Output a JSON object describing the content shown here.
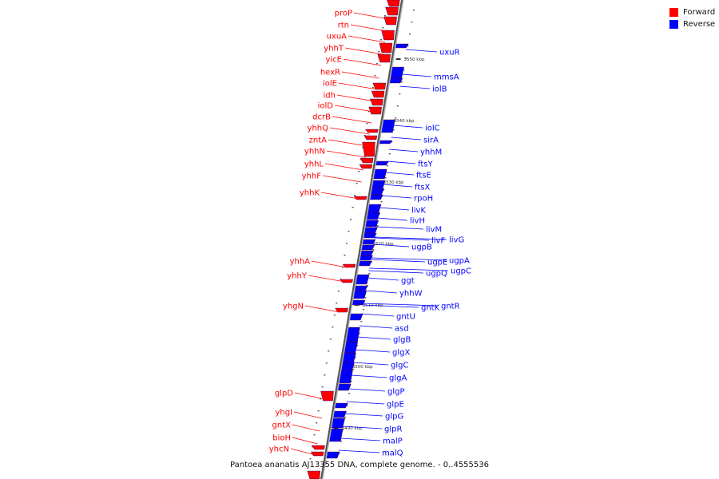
{
  "legend": {
    "forward": {
      "label": "Forward",
      "color": "#ff0000"
    },
    "reverse": {
      "label": "Reverse",
      "color": "#0000ff"
    }
  },
  "caption": "Pantoea ananatis AJ13355 DNA, complete genome. - 0..4555536",
  "ticks": [
    "3550 kbp",
    "3540 kbp",
    "3530 kbp",
    "3520 kbp",
    "3510 kbp",
    "3500 kbp",
    "3490 kbp"
  ],
  "genes": {
    "forward": [
      "proP",
      "rtn",
      "uxuA",
      "yhhT",
      "yicE",
      "hexR",
      "iolE",
      "idh",
      "iolD",
      "dcrB",
      "yhhQ",
      "zntA",
      "yhhN",
      "yhhL",
      "yhhF",
      "yhhK",
      "yhhA",
      "yhhY",
      "yhgN",
      "glpD",
      "yhgI",
      "gntX",
      "bioH",
      "yhcN"
    ],
    "reverse": [
      "uxuR",
      "mmsA",
      "iolB",
      "iolC",
      "sirA",
      "yhhM",
      "ftsY",
      "ftsE",
      "ftsX",
      "rpoH",
      "livK",
      "livH",
      "livM",
      "livF",
      "livG",
      "ugpB",
      "ugpE",
      "ugpA",
      "ugpQ",
      "ugpC",
      "ggt",
      "yhhW",
      "gntK",
      "gntR",
      "gntU",
      "asd",
      "glgB",
      "glgX",
      "glgC",
      "glgA",
      "glgP",
      "glpE",
      "glpG",
      "glpR",
      "malP",
      "malQ"
    ]
  }
}
